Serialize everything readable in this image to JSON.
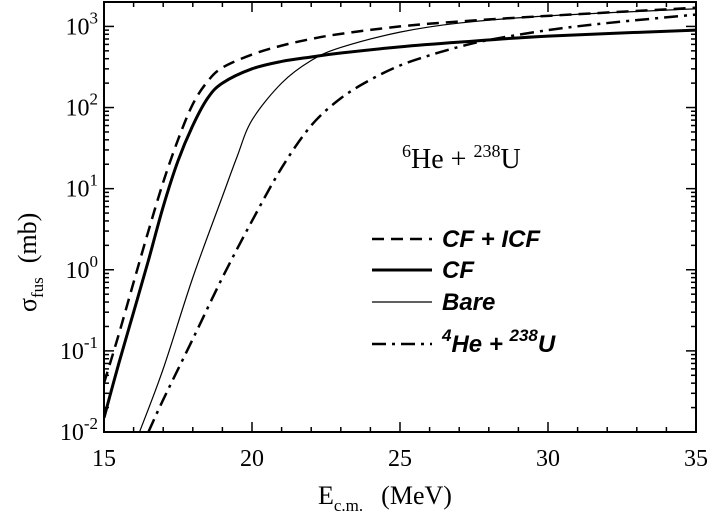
{
  "chart_data": {
    "type": "line",
    "title": "",
    "annotation": {
      "pre_sup": "6",
      "a": "He + ",
      "mid_sup": "238",
      "b": "U"
    },
    "xlabel": {
      "main": "E",
      "sub": "c.m.",
      "unit": "(MeV)"
    },
    "ylabel": {
      "main": "σ",
      "sub": "fus",
      "unit": "(mb)"
    },
    "xlim": [
      15,
      35
    ],
    "ylim": [
      0.01,
      2000
    ],
    "yscale": "log",
    "grid": false,
    "legend_position": "center-right",
    "x_ticks": [
      "15",
      "20",
      "25",
      "30",
      "35"
    ],
    "y_ticks": [
      {
        "base": "10",
        "exp": "-2"
      },
      {
        "base": "10",
        "exp": "-1"
      },
      {
        "base": "10",
        "exp": "0"
      },
      {
        "base": "10",
        "exp": "1"
      },
      {
        "base": "10",
        "exp": "2"
      },
      {
        "base": "10",
        "exp": "3"
      }
    ],
    "series": [
      {
        "name": "CF + ICF",
        "style": "dashed",
        "x": [
          15,
          15.5,
          16,
          16.5,
          17,
          17.5,
          18,
          18.5,
          19,
          20,
          21,
          22,
          23,
          25,
          27,
          30,
          35
        ],
        "y": [
          0.04,
          0.16,
          0.7,
          3,
          12,
          40,
          110,
          210,
          310,
          450,
          580,
          700,
          810,
          1000,
          1150,
          1350,
          1700
        ]
      },
      {
        "name": "CF",
        "style": "solid-thick",
        "x": [
          15,
          15.5,
          16,
          16.5,
          17,
          17.5,
          18,
          18.5,
          19,
          20,
          21,
          22,
          23,
          25,
          27,
          30,
          35
        ],
        "y": [
          0.015,
          0.07,
          0.3,
          1.3,
          6,
          22,
          60,
          130,
          200,
          300,
          370,
          420,
          470,
          560,
          640,
          760,
          900
        ]
      },
      {
        "name": "Bare",
        "style": "solid-thin",
        "x": [
          16.2,
          17,
          18,
          19,
          19.5,
          20,
          21,
          22,
          23,
          25,
          27,
          30,
          35
        ],
        "y": [
          0.01,
          0.06,
          0.8,
          8,
          25,
          70,
          200,
          380,
          550,
          850,
          1100,
          1350,
          1650
        ]
      },
      {
        "name": "^4He + ^238U",
        "legend": {
          "pre_sup": "4",
          "a": "He + ",
          "mid_sup": "238",
          "b": "U"
        },
        "style": "dashdot",
        "x": [
          16.5,
          17,
          18,
          19,
          20,
          21,
          22,
          23,
          24,
          25,
          26,
          27,
          28,
          30,
          32,
          35
        ],
        "y": [
          0.01,
          0.025,
          0.14,
          0.8,
          4,
          18,
          60,
          130,
          220,
          330,
          440,
          560,
          680,
          900,
          1100,
          1400
        ]
      }
    ]
  }
}
